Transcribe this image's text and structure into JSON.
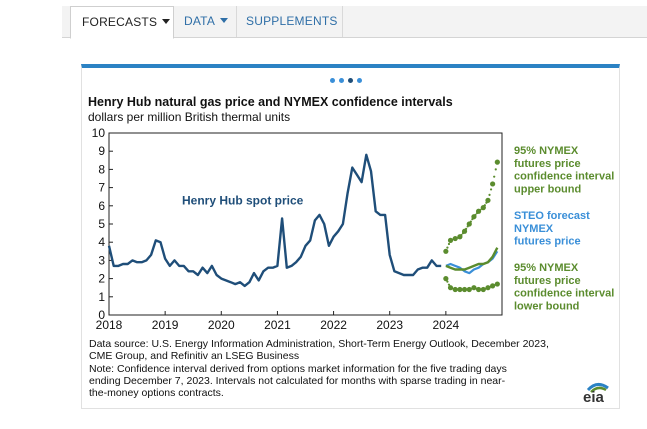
{
  "tabs": [
    {
      "label": "FORECASTS",
      "active": true,
      "has_caret": true
    },
    {
      "label": "DATA",
      "active": false,
      "has_caret": true
    },
    {
      "label": "SUPPLEMENTS",
      "active": false,
      "has_caret": false
    }
  ],
  "carousel": {
    "count": 4,
    "active_index": 2
  },
  "chart": {
    "title": "Henry Hub natural gas price and NYMEX confidence intervals",
    "subtitle": "dollars per million  British thermal units",
    "notes": [
      "Data source: U.S. Energy Information Administration, Short-Term Energy Outlook, December 2023,",
      "CME Group, and Refinitiv an LSEG Business",
      "Note: Confidence interval derived from options market information for the five trading days",
      "ending December 7, 2023. Intervals not calculated for months with sparse trading in near-",
      "the-money options contracts."
    ],
    "logo_text": "eia"
  },
  "colors": {
    "spot": "#1f4e79",
    "steo": "#3a8fd8",
    "nymex": "#5b8c2e",
    "accent": "#2b82c4",
    "tab_link": "#2f6fa7"
  },
  "chart_data": {
    "type": "line",
    "x_unit": "year",
    "xlim": [
      2018.0,
      2025.0
    ],
    "ylim": [
      0,
      10
    ],
    "x_ticks": [
      "2018",
      "2019",
      "2020",
      "2021",
      "2022",
      "2023",
      "2024"
    ],
    "y_ticks": [
      "0",
      "1",
      "2",
      "3",
      "4",
      "5",
      "6",
      "7",
      "8",
      "9",
      "10"
    ],
    "grid": false,
    "annotations": [
      {
        "text": "Henry Hub spot price",
        "x": 2019.3,
        "y": 6.3
      }
    ],
    "series": [
      {
        "name": "Henry Hub spot price",
        "x": [
          2018.0,
          2018.083,
          2018.167,
          2018.25,
          2018.333,
          2018.417,
          2018.5,
          2018.583,
          2018.667,
          2018.75,
          2018.833,
          2018.917,
          2019.0,
          2019.083,
          2019.167,
          2019.25,
          2019.333,
          2019.417,
          2019.5,
          2019.583,
          2019.667,
          2019.75,
          2019.833,
          2019.917,
          2020.0,
          2020.083,
          2020.167,
          2020.25,
          2020.333,
          2020.417,
          2020.5,
          2020.583,
          2020.667,
          2020.75,
          2020.833,
          2020.917,
          2021.0,
          2021.083,
          2021.167,
          2021.25,
          2021.333,
          2021.417,
          2021.5,
          2021.583,
          2021.667,
          2021.75,
          2021.833,
          2021.917,
          2022.0,
          2022.083,
          2022.167,
          2022.25,
          2022.333,
          2022.417,
          2022.5,
          2022.583,
          2022.667,
          2022.75,
          2022.833,
          2022.917,
          2023.0,
          2023.083,
          2023.167,
          2023.25,
          2023.333,
          2023.417,
          2023.5,
          2023.583,
          2023.667,
          2023.75,
          2023.833,
          2023.917
        ],
        "values": [
          3.8,
          2.7,
          2.7,
          2.8,
          2.8,
          3.0,
          2.9,
          2.9,
          3.0,
          3.3,
          4.1,
          4.0,
          3.1,
          2.7,
          3.0,
          2.7,
          2.7,
          2.4,
          2.4,
          2.2,
          2.6,
          2.3,
          2.7,
          2.2,
          2.0,
          1.9,
          1.8,
          1.7,
          1.8,
          1.6,
          1.8,
          2.3,
          1.9,
          2.4,
          2.6,
          2.6,
          2.7,
          5.3,
          2.6,
          2.7,
          2.9,
          3.2,
          3.8,
          4.1,
          5.2,
          5.5,
          5.0,
          3.8,
          4.3,
          4.6,
          5.0,
          6.7,
          8.1,
          7.7,
          7.3,
          8.8,
          7.9,
          5.7,
          5.5,
          5.5,
          3.3,
          2.4,
          2.3,
          2.2,
          2.2,
          2.2,
          2.5,
          2.6,
          2.6,
          3.0,
          2.7,
          2.7
        ]
      },
      {
        "name": "STEO forecast NYMEX futures price",
        "x": [
          2024.0,
          2024.083,
          2024.167,
          2024.25,
          2024.333,
          2024.417,
          2024.5,
          2024.583,
          2024.667,
          2024.75,
          2024.833,
          2024.917
        ],
        "values": [
          2.7,
          2.8,
          2.7,
          2.6,
          2.4,
          2.3,
          2.5,
          2.6,
          2.8,
          2.9,
          3.1,
          3.5
        ]
      },
      {
        "name": "",
        "x": [
          2024.0,
          2024.083,
          2024.167,
          2024.25,
          2024.333,
          2024.417,
          2024.5,
          2024.583,
          2024.667,
          2024.75,
          2024.833,
          2024.917
        ],
        "values": [
          2.7,
          2.6,
          2.5,
          2.5,
          2.5,
          2.6,
          2.7,
          2.8,
          2.8,
          2.9,
          3.2,
          3.7
        ]
      },
      {
        "name": "95% NYMEX futures price confidence interval upper bound",
        "x": [
          2024.0,
          2024.083,
          2024.167,
          2024.25,
          2024.333,
          2024.417,
          2024.5,
          2024.583,
          2024.667,
          2024.75,
          2024.833,
          2024.917
        ],
        "values": [
          3.5,
          4.1,
          4.2,
          4.3,
          4.6,
          5.0,
          5.4,
          5.7,
          5.9,
          6.3,
          7.2,
          8.4
        ]
      },
      {
        "name": "95% NYMEX futures price confidence interval lower bound",
        "x": [
          2024.0,
          2024.083,
          2024.167,
          2024.25,
          2024.333,
          2024.417,
          2024.5,
          2024.583,
          2024.667,
          2024.75,
          2024.833,
          2024.917
        ],
        "values": [
          2.0,
          1.5,
          1.4,
          1.4,
          1.4,
          1.4,
          1.5,
          1.4,
          1.4,
          1.5,
          1.6,
          1.7
        ]
      }
    ],
    "legend": [
      {
        "lines": [
          "95% NYMEX",
          "futures price",
          "confidence interval",
          "upper bound"
        ],
        "color": "#5b8c2e"
      },
      {
        "lines": [
          "STEO forecast",
          "NYMEX",
          "futures price"
        ],
        "color": "#3a8fd8"
      },
      {
        "lines": [
          "95% NYMEX",
          "futures price",
          "confidence interval",
          "lower bound"
        ],
        "color": "#5b8c2e"
      }
    ]
  }
}
